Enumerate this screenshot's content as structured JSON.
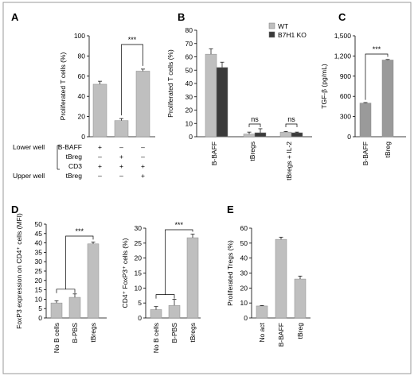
{
  "colors": {
    "wt": "#bfbfbf",
    "ko": "#3a3a3a",
    "bar": "#bfbfbf",
    "bar_dark": "#9a9a9a",
    "border": "#999999"
  },
  "chart_data": [
    {
      "panel": "A",
      "type": "bar",
      "ylabel": "Proliferated T cells (%)",
      "ylim": [
        0,
        100
      ],
      "yticks": [
        "0",
        "20",
        "40",
        "60",
        "80",
        "100"
      ],
      "values": [
        52,
        16,
        65
      ],
      "errors": [
        3,
        2,
        2
      ],
      "significance": [
        {
          "from": 1,
          "to": 2,
          "label": "***"
        }
      ],
      "table": {
        "lower_well_label": "Lower well",
        "upper_well_label": "Upper well",
        "rows": [
          {
            "name": "B-BAFF",
            "cells": [
              "+",
              "–",
              "–"
            ]
          },
          {
            "name": "tBreg",
            "cells": [
              "–",
              "+",
              "–"
            ]
          },
          {
            "name": "CD3",
            "cells": [
              "+",
              "+",
              "+"
            ]
          },
          {
            "name": "tBreg",
            "cells": [
              "–",
              "–",
              "+"
            ]
          }
        ]
      }
    },
    {
      "panel": "B",
      "type": "bar",
      "ylabel": "Proliferated T cells (%)",
      "ylim": [
        0,
        80
      ],
      "yticks": [
        "0",
        "10",
        "20",
        "30",
        "40",
        "50",
        "60",
        "70",
        "80"
      ],
      "categories": [
        "B-BAFF",
        "tBregs",
        "tBregs + IL-2"
      ],
      "series": [
        {
          "name": "WT",
          "values": [
            62,
            2,
            3.5
          ],
          "errors": [
            4,
            1.5,
            0.5
          ]
        },
        {
          "name": "B7H1 KO",
          "values": [
            52,
            3,
            3
          ],
          "errors": [
            4,
            3,
            0.5
          ]
        }
      ],
      "significance": [
        {
          "category": 1,
          "label": "ns"
        },
        {
          "category": 2,
          "label": "ns"
        }
      ]
    },
    {
      "panel": "C",
      "type": "bar",
      "ylabel": "TGF-β (pg/mL)",
      "ylim": [
        0,
        1500
      ],
      "yticks": [
        "0",
        "300",
        "600",
        "900",
        "1,200",
        "1,500"
      ],
      "categories": [
        "B-BAFF",
        "tBreg"
      ],
      "values": [
        500,
        1140
      ],
      "errors": [
        8,
        8
      ],
      "significance": [
        {
          "from": 0,
          "to": 1,
          "label": "***"
        }
      ]
    },
    {
      "panel": "D",
      "type": "bar",
      "ylabel": "FoxP3 expression on CD4⁺ cells (MFI)",
      "ylim": [
        0,
        50
      ],
      "yticks": [
        "0",
        "5",
        "10",
        "15",
        "20",
        "25",
        "30",
        "35",
        "40",
        "45",
        "50"
      ],
      "categories": [
        "No B cells",
        "B-PBS",
        "tBregs"
      ],
      "values": [
        8,
        11,
        39.5
      ],
      "errors": [
        1.2,
        1.8,
        1
      ],
      "significance": [
        {
          "from_group": [
            0,
            1
          ],
          "to": 2,
          "label": "***"
        }
      ]
    },
    {
      "panel": "D",
      "type": "bar",
      "ylabel": "CD4⁺ FoxP3⁺ cells (%)",
      "ylim": [
        0,
        30
      ],
      "yticks": [
        "0",
        "5",
        "10",
        "15",
        "20",
        "25",
        "30"
      ],
      "categories": [
        "No B cells",
        "B-PBS",
        "tBregs"
      ],
      "values": [
        2.8,
        4.2,
        26.8
      ],
      "errors": [
        1,
        2,
        1.2
      ],
      "significance": [
        {
          "from_group": [
            0,
            1
          ],
          "to": 2,
          "label": "***"
        }
      ]
    },
    {
      "panel": "E",
      "type": "bar",
      "ylabel": "Proliferated Tregs (%)",
      "ylim": [
        0,
        60
      ],
      "yticks": [
        "0",
        "10",
        "20",
        "30",
        "40",
        "50",
        "60"
      ],
      "categories": [
        "No act",
        "B-BAFF",
        "tBreg"
      ],
      "values": [
        8,
        52.5,
        26
      ],
      "errors": [
        0.3,
        1.5,
        2
      ]
    }
  ]
}
